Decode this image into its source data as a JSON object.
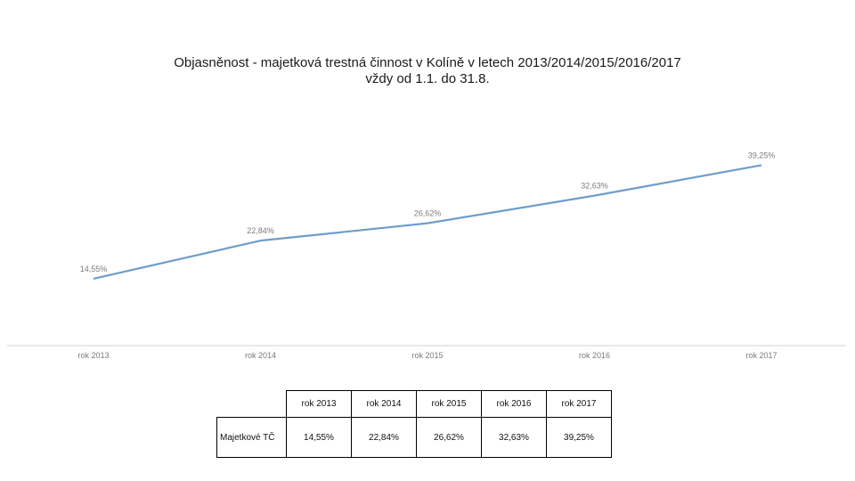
{
  "chart_data": {
    "type": "line",
    "title": "Objasněnost - majetková trestná činnost v Kolíně v letech 2013/2014/2015/2016/2017",
    "subtitle": "vždy od 1.1. do 31.8.",
    "categories": [
      "rok 2013",
      "rok 2014",
      "rok 2015",
      "rok 2016",
      "rok 2017"
    ],
    "series": [
      {
        "values": [
          14.55,
          22.84,
          26.62,
          32.63,
          39.25
        ],
        "labels": [
          "14,55%",
          "22,84%",
          "26,62%",
          "32,63%",
          "39,25%"
        ]
      }
    ],
    "ylim": [
      0,
      50
    ],
    "grid": false,
    "legend": "none",
    "line_color": "#6e9ec9",
    "label_color": "#7a7a7a",
    "axis_color": "#e2e2e2"
  },
  "table": {
    "headers": [
      "rok 2013",
      "rok 2014",
      "rok 2015",
      "rok 2016",
      "rok 2017"
    ],
    "row_label": "Majetkové TČ",
    "values": [
      "14,55%",
      "22,84%",
      "26,62%",
      "32,63%",
      "39,25%"
    ]
  }
}
